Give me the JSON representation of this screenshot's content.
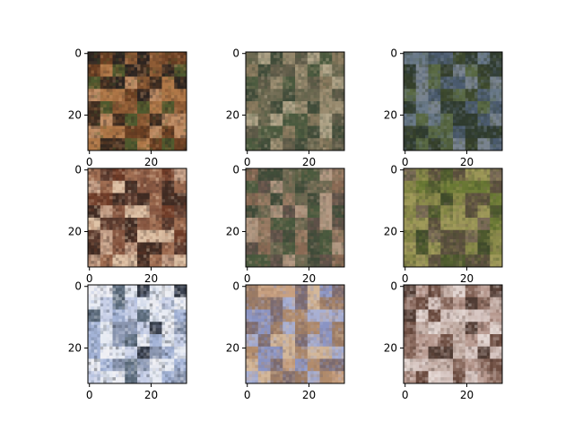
{
  "chart_data": {
    "type": "image-grid",
    "layout": {
      "rows": 3,
      "cols": 3
    },
    "image_size": [
      32,
      32
    ],
    "axes_xlim": [
      -0.5,
      31.5
    ],
    "axes_ylim": [
      31.5,
      -0.5
    ],
    "x_ticks": [
      0,
      20
    ],
    "y_ticks": [
      0,
      20
    ],
    "tick_labels": {
      "0": "0",
      "20": "20"
    },
    "panels": [
      {
        "row": 0,
        "col": 0,
        "palette": [
          "#3a2a1f",
          "#6b3f22",
          "#8c5a34",
          "#b07848",
          "#4e5a2e",
          "#2a2320",
          "#c29068"
        ]
      },
      {
        "row": 0,
        "col": 1,
        "palette": [
          "#6e6a52",
          "#8a7a5e",
          "#4a5a3e",
          "#9a8c70",
          "#3e4a38",
          "#b4a88c",
          "#5e5a48"
        ]
      },
      {
        "row": 0,
        "col": 2,
        "palette": [
          "#3e4a2e",
          "#5a6a44",
          "#2e3a2e",
          "#6a7a8a",
          "#4a5a6e",
          "#7a8490",
          "#343e2a"
        ]
      },
      {
        "row": 1,
        "col": 0,
        "palette": [
          "#5a3a2e",
          "#8a5a44",
          "#c8a48c",
          "#e0c4a8",
          "#6e3a26",
          "#a27054",
          "#3e2a22"
        ]
      },
      {
        "row": 1,
        "col": 1,
        "palette": [
          "#6e6a52",
          "#8a6a54",
          "#4a5a3e",
          "#9a7c64",
          "#3e4a38",
          "#b49a84",
          "#5e5048"
        ]
      },
      {
        "row": 1,
        "col": 2,
        "palette": [
          "#6a7a34",
          "#4e5a2e",
          "#8a8a4a",
          "#5a4e3e",
          "#7a6a58",
          "#3e4a2a",
          "#a09a5a"
        ]
      },
      {
        "row": 2,
        "col": 0,
        "palette": [
          "#a4b4d8",
          "#c8d0e8",
          "#e8ecf4",
          "#5a6a7a",
          "#2e3440",
          "#8a96b0",
          "#f0f0f4"
        ]
      },
      {
        "row": 2,
        "col": 1,
        "palette": [
          "#8a94c4",
          "#a8b0d4",
          "#9a7a64",
          "#c8a080",
          "#b08a6a",
          "#7a6a70",
          "#d4b89a"
        ]
      },
      {
        "row": 2,
        "col": 2,
        "palette": [
          "#d8c8c4",
          "#b89a90",
          "#8a6a5e",
          "#6a4a3e",
          "#c8b4ac",
          "#4e3a32",
          "#e4d8d4"
        ]
      }
    ]
  }
}
